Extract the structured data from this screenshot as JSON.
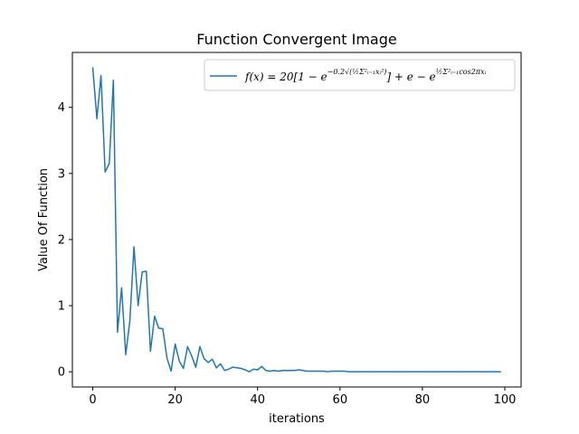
{
  "chart_data": {
    "type": "line",
    "title": "Function Convergent Image",
    "xlabel": "iterations",
    "ylabel": "Value Of Function",
    "xlim": [
      -4.95,
      103.95
    ],
    "ylim": [
      -0.23,
      4.83
    ],
    "xticks": [
      0,
      20,
      40,
      60,
      80,
      100
    ],
    "yticks": [
      0,
      1,
      2,
      3,
      4
    ],
    "grid": false,
    "legend_position": "top-right",
    "series": [
      {
        "name_parts": {
          "lead": "f(x) = 20[1 − e",
          "exp1": "−0.2√(½Σ²ᵢ₌₁xᵢ²)",
          "mid": "] + e − e",
          "exp2": "½Σ²ᵢ₌₁cos2πxᵢ"
        },
        "color": "#1f77b4",
        "x": [
          0,
          1,
          2,
          3,
          4,
          5,
          6,
          7,
          8,
          9,
          10,
          11,
          12,
          13,
          14,
          15,
          16,
          17,
          18,
          19,
          20,
          21,
          22,
          23,
          24,
          25,
          26,
          27,
          28,
          29,
          30,
          31,
          32,
          33,
          34,
          35,
          36,
          37,
          38,
          39,
          40,
          41,
          42,
          43,
          44,
          45,
          46,
          47,
          48,
          49,
          50,
          51,
          52,
          53,
          54,
          55,
          56,
          57,
          58,
          59,
          60,
          61,
          62,
          63,
          64,
          65,
          66,
          67,
          68,
          69,
          70,
          71,
          72,
          73,
          74,
          75,
          76,
          77,
          78,
          79,
          80,
          81,
          82,
          83,
          84,
          85,
          86,
          87,
          88,
          89,
          90,
          91,
          92,
          93,
          94,
          95,
          96,
          97,
          98,
          99
        ],
        "values": [
          4.6,
          3.83,
          4.48,
          3.02,
          3.15,
          4.41,
          0.6,
          1.27,
          0.26,
          0.77,
          1.89,
          1.0,
          1.51,
          1.52,
          0.31,
          0.84,
          0.66,
          0.65,
          0.21,
          0.01,
          0.42,
          0.16,
          0.05,
          0.38,
          0.24,
          0.07,
          0.38,
          0.2,
          0.14,
          0.19,
          0.06,
          0.12,
          0.02,
          0.04,
          0.07,
          0.06,
          0.05,
          0.03,
          0.0,
          0.04,
          0.03,
          0.08,
          0.02,
          0.01,
          0.02,
          0.01,
          0.02,
          0.02,
          0.02,
          0.02,
          0.03,
          0.02,
          0.01,
          0.01,
          0.01,
          0.01,
          0.01,
          0.0,
          0.01,
          0.01,
          0.01,
          0.01,
          0.0,
          0.0,
          0.0,
          0.0,
          0.0,
          0.0,
          0.0,
          0.0,
          0.0,
          0.0,
          0.0,
          0.0,
          0.0,
          0.0,
          0.0,
          0.0,
          0.0,
          0.0,
          0.0,
          0.0,
          0.0,
          0.0,
          0.0,
          0.0,
          0.0,
          0.0,
          0.0,
          0.0,
          0.0,
          0.0,
          0.0,
          0.0,
          0.0,
          0.0,
          0.0,
          0.0,
          0.0,
          0.0
        ]
      }
    ]
  }
}
